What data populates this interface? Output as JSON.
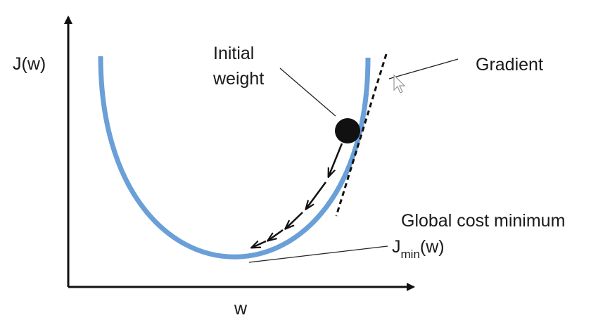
{
  "diagram": {
    "axis_y_label": "J(w)",
    "axis_x_label": "w",
    "initial_weight_line1": "Initial",
    "initial_weight_line2": "weight",
    "gradient_label": "Gradient",
    "global_min_label": "Global cost minimum",
    "jmin_main": "J",
    "jmin_sub": "min",
    "jmin_suffix": "(w)"
  },
  "colors": {
    "curve": "#6a9fd8",
    "ink": "#111111",
    "leader": "#222222",
    "cursor": "#ffffff"
  },
  "icons": [
    "mouse-pointer-icon"
  ]
}
